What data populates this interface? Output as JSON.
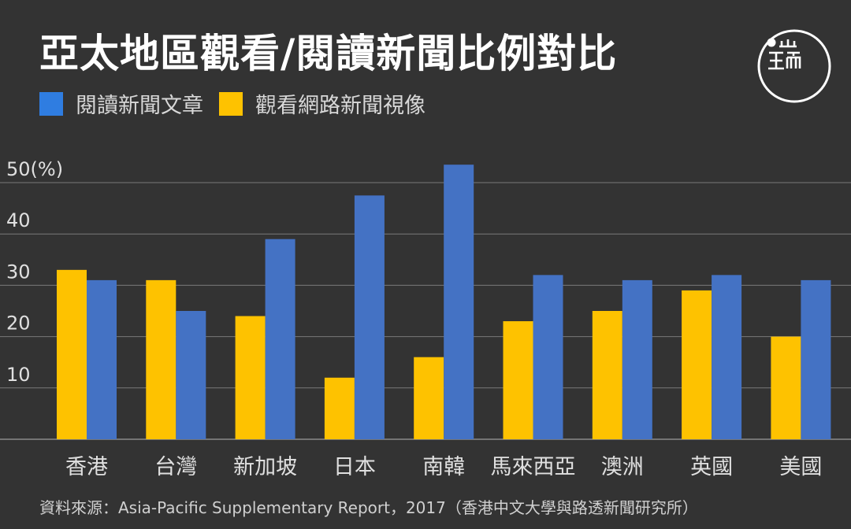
{
  "title": "亞太地區觀看/閱讀新聞比例對比",
  "legend": [
    {
      "label": "閱讀新聞文章",
      "color": "#2f7de1"
    },
    {
      "label": "觀看網路新聞視像",
      "color": "#fec200"
    }
  ],
  "logo_icon": "端-logo-icon",
  "source": "資料來源：Asia-Pacific Supplementary Report，2017（香港中文大學與路透新聞研究所）",
  "chart_data": {
    "type": "bar",
    "categories": [
      "香港",
      "台灣",
      "新加坡",
      "日本",
      "南韓",
      "馬來西亞",
      "澳洲",
      "英國",
      "美國"
    ],
    "series": [
      {
        "name": "觀看網路新聞視像",
        "color": "#fec200",
        "values": [
          33,
          31,
          24,
          12,
          16,
          23,
          25,
          29,
          20
        ]
      },
      {
        "name": "閱讀新聞文章",
        "color": "#4472c4",
        "values": [
          31,
          25,
          39,
          47.5,
          53.5,
          32,
          31,
          32,
          31
        ]
      }
    ],
    "yticks": [
      "10",
      "20",
      "30",
      "40",
      "50(%)"
    ],
    "ytick_values": [
      10,
      20,
      30,
      40,
      50
    ],
    "ylim": [
      0,
      55
    ],
    "grid": true,
    "legend_position": "top-left"
  }
}
